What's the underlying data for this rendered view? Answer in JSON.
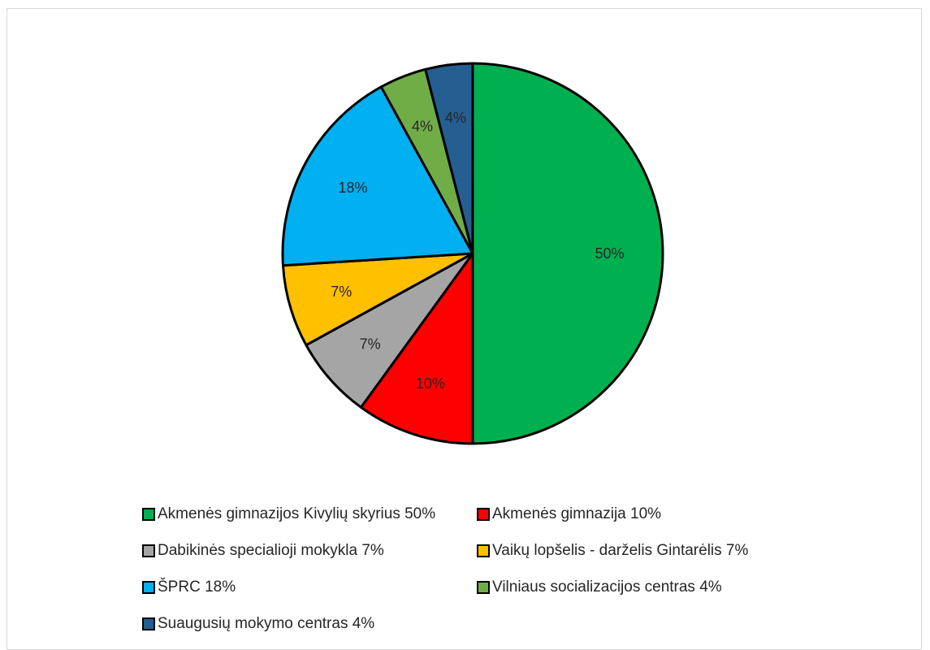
{
  "chart_data": {
    "type": "pie",
    "title": "",
    "start_angle_deg": 0,
    "direction": "clockwise",
    "border_color": "#000000",
    "legend_position": "bottom",
    "slices": [
      {
        "name": "Akmenės gimnazijos Kivylių skyrius",
        "value": 50,
        "label": "50%",
        "legend": "Akmenės gimnazijos Kivylių skyrius 50%",
        "color": "#00b050"
      },
      {
        "name": "Akmenės gimnazija",
        "value": 10,
        "label": "10%",
        "legend": "Akmenės gimnazija 10%",
        "color": "#ff0000"
      },
      {
        "name": "Dabikinės specialioji mokykla",
        "value": 7,
        "label": "7%",
        "legend": "Dabikinės specialioji mokykla 7%",
        "color": "#a5a5a5"
      },
      {
        "name": "Vaikų lopšelis - darželis Gintarėlis",
        "value": 7,
        "label": "7%",
        "legend": "Vaikų lopšelis - darželis Gintarėlis 7%",
        "color": "#ffc000"
      },
      {
        "name": "ŠPRC",
        "value": 18,
        "label": "18%",
        "legend": "ŠPRC 18%",
        "color": "#00b0f0"
      },
      {
        "name": "Vilniaus socializacijos centras",
        "value": 4,
        "label": "4%",
        "legend": "Vilniaus socializacijos centras 4%",
        "color": "#70ad47"
      },
      {
        "name": "Suaugusių mokymo centras",
        "value": 4,
        "label": "4%",
        "legend": "Suaugusių mokymo centras 4%",
        "color": "#255e91"
      }
    ]
  }
}
